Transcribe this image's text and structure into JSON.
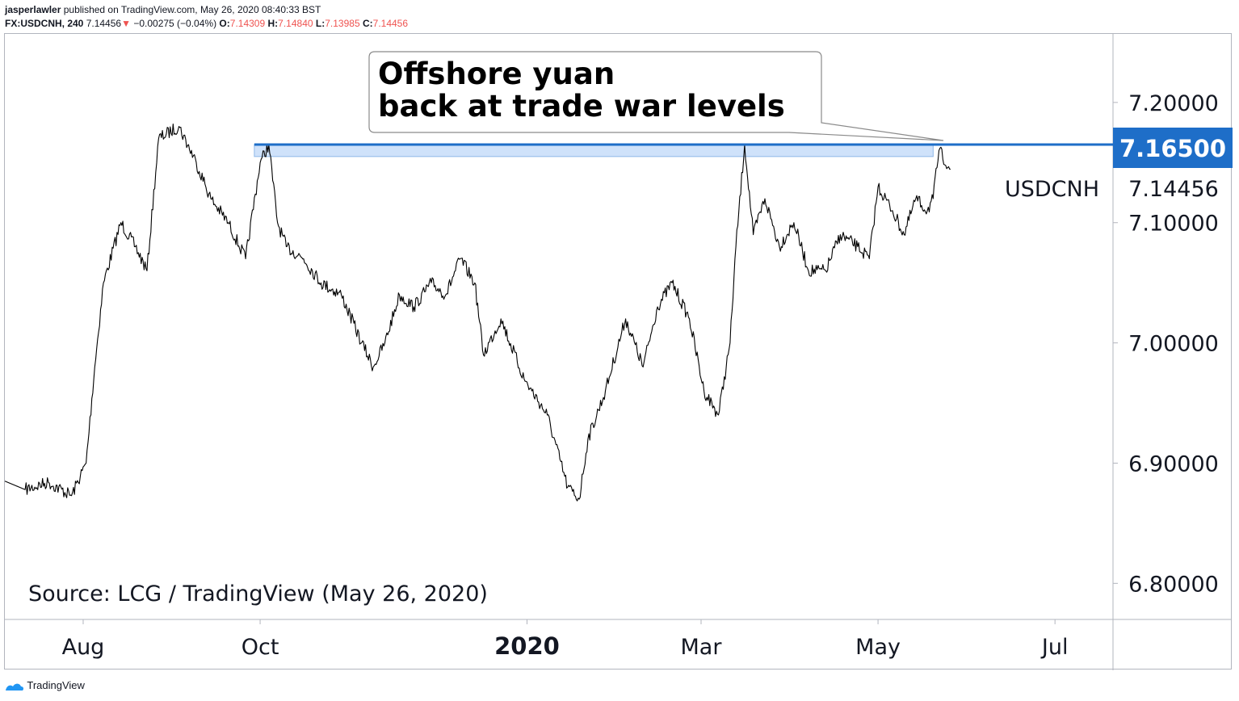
{
  "header": {
    "publisher": "jasperlawler",
    "published_text": "published on TradingView.com, May 26, 2020 08:40:33 BST",
    "symbol": "FX:USDCNH, 240",
    "last": "7.14456",
    "change": "−0.00275 (−0.04%)",
    "o_label": "O:",
    "o_value": "7.14309",
    "h_label": "H:",
    "h_value": "7.14840",
    "l_label": "L:",
    "l_value": "7.13985",
    "c_label": "C:",
    "c_value": "7.14456"
  },
  "annotation": {
    "line1": "Offshore yuan",
    "line2": "back at trade war levels"
  },
  "source_note": "Source: LCG / TradingView (May 26, 2020)",
  "footer": {
    "brand": "TradingView"
  },
  "colors": {
    "price_line": "#000000",
    "resistance_line": "#1e6ec8",
    "resistance_zone": "#cfe2fa",
    "resistance_badge": "#1e6ec8",
    "down_arrow": "#ef5350",
    "axis_text": "#131722",
    "border": "#b2b5be"
  },
  "chart_data": {
    "type": "line",
    "instrument": "USDCNH",
    "timeframe": "240",
    "x_tick_labels": [
      "Aug",
      "Oct",
      "2020",
      "Mar",
      "May",
      "Jul"
    ],
    "y_tick_labels": [
      "7.20000",
      "7.10000",
      "7.00000",
      "6.90000",
      "6.80000"
    ],
    "y_ticks": [
      7.2,
      7.1,
      7.0,
      6.9,
      6.8
    ],
    "ylim": [
      6.77,
      7.257
    ],
    "x_range": [
      "2019-07-05",
      "2020-07-21"
    ],
    "grid": false,
    "resistance": {
      "value": 7.165,
      "label": "7.16500",
      "zone": [
        7.155,
        7.165
      ],
      "x_range": [
        "2019-09-29",
        "2020-05-20"
      ]
    },
    "last_price": {
      "value": 7.14456,
      "label": "7.14456",
      "series_label": "USDCNH"
    },
    "series": [
      {
        "name": "USDCNH",
        "x": [
          "2019-07-05",
          "2019-07-12",
          "2019-07-20",
          "2019-07-28",
          "2019-08-02",
          "2019-08-05",
          "2019-08-08",
          "2019-08-14",
          "2019-08-19",
          "2019-08-23",
          "2019-08-27",
          "2019-09-03",
          "2019-09-09",
          "2019-09-14",
          "2019-09-20",
          "2019-09-26",
          "2019-10-01",
          "2019-10-04",
          "2019-10-07",
          "2019-10-10",
          "2019-10-16",
          "2019-10-22",
          "2019-10-29",
          "2019-11-05",
          "2019-11-09",
          "2019-11-13",
          "2019-11-18",
          "2019-11-23",
          "2019-11-29",
          "2019-12-04",
          "2019-12-09",
          "2019-12-14",
          "2019-12-17",
          "2019-12-23",
          "2019-12-31",
          "2020-01-08",
          "2020-01-15",
          "2020-01-19",
          "2020-01-22",
          "2020-01-28",
          "2020-02-04",
          "2020-02-10",
          "2020-02-15",
          "2020-02-20",
          "2020-02-26",
          "2020-03-02",
          "2020-03-07",
          "2020-03-11",
          "2020-03-13",
          "2020-03-16",
          "2020-03-19",
          "2020-03-23",
          "2020-03-28",
          "2020-04-02",
          "2020-04-07",
          "2020-04-13",
          "2020-04-18",
          "2020-04-24",
          "2020-04-28",
          "2020-05-01",
          "2020-05-06",
          "2020-05-10",
          "2020-05-14",
          "2020-05-18",
          "2020-05-20",
          "2020-05-22",
          "2020-05-26"
        ],
        "y": [
          6.885,
          6.878,
          6.884,
          6.873,
          6.9,
          6.98,
          7.05,
          7.1,
          7.08,
          7.06,
          7.17,
          7.18,
          7.15,
          7.12,
          7.1,
          7.07,
          7.15,
          7.165,
          7.1,
          7.08,
          7.07,
          7.05,
          7.04,
          7.0,
          6.98,
          7.0,
          7.04,
          7.03,
          7.05,
          7.04,
          7.07,
          7.05,
          6.99,
          7.02,
          6.97,
          6.94,
          6.88,
          6.87,
          6.92,
          6.96,
          7.02,
          6.98,
          7.03,
          7.05,
          7.02,
          6.96,
          6.94,
          7.0,
          7.08,
          7.165,
          7.09,
          7.12,
          7.08,
          7.1,
          7.06,
          7.06,
          7.09,
          7.08,
          7.07,
          7.13,
          7.11,
          7.09,
          7.12,
          7.11,
          7.12,
          7.16,
          7.14456
        ]
      }
    ]
  }
}
